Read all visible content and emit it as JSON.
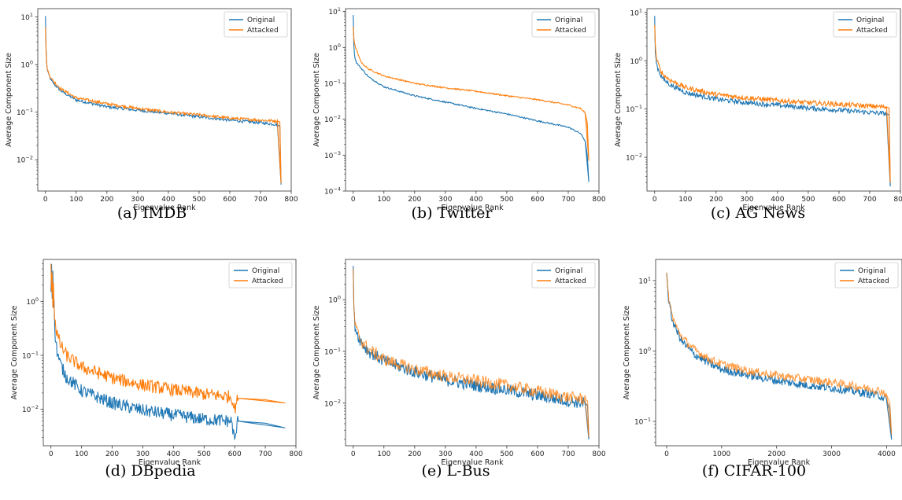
{
  "figure": {
    "colors": {
      "original": "#1f77b4",
      "attacked": "#ff7f0e"
    },
    "legend_position": "top-right"
  },
  "chart_data": [
    {
      "type": "line",
      "caption": "(a) IMDB",
      "xlabel": "Eigenvalue Rank",
      "ylabel": "Average Component Size",
      "xlim": [
        -25,
        800
      ],
      "ylim": [
        0.0022,
        15
      ],
      "yscale": "log",
      "xticks": [
        0,
        100,
        200,
        300,
        400,
        500,
        600,
        700,
        800
      ],
      "yticks": [
        {
          "v": 10,
          "t": "10"
        },
        {
          "v": 1,
          "t": "10"
        },
        {
          "v": 0.1,
          "t": "10"
        },
        {
          "v": 0.01,
          "t": "10"
        }
      ],
      "ytick_exps": [
        "1",
        "0",
        "-1",
        "-2"
      ],
      "noise": 0.03,
      "series": [
        {
          "name": "Original",
          "x": [
            0,
            1,
            3,
            6,
            10,
            20,
            30,
            50,
            100,
            200,
            300,
            400,
            500,
            600,
            700,
            755,
            763,
            767
          ],
          "values": [
            10.5,
            4,
            1.2,
            0.8,
            0.62,
            0.45,
            0.38,
            0.28,
            0.18,
            0.13,
            0.11,
            0.095,
            0.08,
            0.068,
            0.06,
            0.055,
            0.05,
            0.003
          ]
        },
        {
          "name": "Attacked",
          "x": [
            0,
            1,
            3,
            6,
            10,
            20,
            30,
            50,
            100,
            200,
            300,
            400,
            500,
            600,
            700,
            755,
            763,
            767
          ],
          "values": [
            6.2,
            3,
            1.1,
            0.82,
            0.66,
            0.5,
            0.42,
            0.31,
            0.2,
            0.15,
            0.12,
            0.1,
            0.088,
            0.075,
            0.068,
            0.065,
            0.062,
            0.0032
          ]
        }
      ]
    },
    {
      "type": "line",
      "caption": "(b) Twitter",
      "xlabel": "Eigenvalue Rank",
      "ylabel": "Average Component Size",
      "xlim": [
        -25,
        800
      ],
      "ylim": [
        0.0001,
        12
      ],
      "yscale": "log",
      "xticks": [
        0,
        100,
        200,
        300,
        400,
        500,
        600,
        700,
        800
      ],
      "yticks": [
        {
          "v": 10,
          "t": "10"
        },
        {
          "v": 1,
          "t": "10"
        },
        {
          "v": 0.1,
          "t": "10"
        },
        {
          "v": 0.01,
          "t": "10"
        },
        {
          "v": 0.001,
          "t": "10"
        },
        {
          "v": 0.0001,
          "t": "10"
        }
      ],
      "ytick_exps": [
        "1",
        "0",
        "-1",
        "-2",
        "-3",
        "-4"
      ],
      "noise": 0.02,
      "series": [
        {
          "name": "Original",
          "x": [
            0,
            1,
            3,
            6,
            10,
            20,
            30,
            50,
            100,
            200,
            300,
            400,
            500,
            600,
            700,
            740,
            755,
            762,
            767
          ],
          "values": [
            8,
            2,
            0.8,
            0.5,
            0.38,
            0.3,
            0.24,
            0.15,
            0.08,
            0.045,
            0.03,
            0.02,
            0.014,
            0.009,
            0.006,
            0.004,
            0.0025,
            0.001,
            0.00018
          ]
        },
        {
          "name": "Attacked",
          "x": [
            0,
            1,
            3,
            6,
            10,
            20,
            30,
            50,
            100,
            200,
            300,
            400,
            500,
            600,
            700,
            740,
            755,
            762,
            767
          ],
          "values": [
            3.8,
            2.5,
            1.4,
            1.1,
            0.9,
            0.5,
            0.35,
            0.25,
            0.16,
            0.1,
            0.075,
            0.06,
            0.045,
            0.035,
            0.025,
            0.02,
            0.015,
            0.008,
            0.0007
          ]
        }
      ]
    },
    {
      "type": "line",
      "caption": "(c) AG News",
      "xlabel": "Eigenvalue Rank",
      "ylabel": "Average Component Size",
      "xlim": [
        -25,
        800
      ],
      "ylim": [
        0.002,
        12
      ],
      "yscale": "log",
      "xticks": [
        0,
        100,
        200,
        300,
        400,
        500,
        600,
        700,
        800
      ],
      "yticks": [
        {
          "v": 10,
          "t": "10"
        },
        {
          "v": 1,
          "t": "10"
        },
        {
          "v": 0.1,
          "t": "10"
        },
        {
          "v": 0.01,
          "t": "10"
        }
      ],
      "ytick_exps": [
        "1",
        "0",
        "-1",
        "-2"
      ],
      "noise": 0.05,
      "series": [
        {
          "name": "Original",
          "x": [
            0,
            1,
            3,
            6,
            10,
            20,
            30,
            50,
            100,
            200,
            300,
            400,
            500,
            600,
            700,
            755,
            763,
            767
          ],
          "values": [
            8.5,
            2,
            1.2,
            0.9,
            0.7,
            0.5,
            0.4,
            0.32,
            0.22,
            0.16,
            0.135,
            0.12,
            0.105,
            0.095,
            0.085,
            0.08,
            0.075,
            0.0025
          ]
        },
        {
          "name": "Attacked",
          "x": [
            0,
            1,
            3,
            6,
            10,
            20,
            30,
            50,
            100,
            200,
            300,
            400,
            500,
            600,
            700,
            755,
            763,
            767
          ],
          "values": [
            5.5,
            3,
            1.6,
            1.1,
            0.9,
            0.62,
            0.5,
            0.4,
            0.28,
            0.2,
            0.17,
            0.15,
            0.135,
            0.125,
            0.115,
            0.11,
            0.105,
            0.003
          ]
        }
      ]
    },
    {
      "type": "line",
      "caption": "(d) DBpedia",
      "xlabel": "Eigenvalue Rank",
      "ylabel": "Average Component Size",
      "xlim": [
        -25,
        800
      ],
      "ylim": [
        0.0021,
        6
      ],
      "yscale": "log",
      "xticks": [
        0,
        100,
        200,
        300,
        400,
        500,
        600,
        700,
        800
      ],
      "yticks": [
        {
          "v": 1,
          "t": "10"
        },
        {
          "v": 0.1,
          "t": "10"
        },
        {
          "v": 0.01,
          "t": "10"
        }
      ],
      "ytick_exps": [
        "0",
        "-1",
        "-2"
      ],
      "noise": 0.12,
      "series": [
        {
          "name": "Original",
          "x": [
            0,
            2,
            4,
            6,
            8,
            10,
            12,
            15,
            20,
            30,
            50,
            100,
            200,
            300,
            400,
            500,
            590,
            600,
            610,
            700,
            765
          ],
          "values": [
            1.5,
            5,
            1.2,
            5,
            0.8,
            1.5,
            0.3,
            0.2,
            0.12,
            0.07,
            0.04,
            0.022,
            0.013,
            0.0095,
            0.0078,
            0.0065,
            0.006,
            0.0025,
            0.006,
            0.0055,
            0.0045
          ]
        },
        {
          "name": "Attacked",
          "x": [
            0,
            2,
            4,
            6,
            8,
            10,
            12,
            15,
            20,
            30,
            50,
            100,
            200,
            300,
            400,
            500,
            590,
            600,
            610,
            700,
            765
          ],
          "values": [
            5,
            1.5,
            4.5,
            0.8,
            2.5,
            1,
            0.6,
            0.35,
            0.25,
            0.16,
            0.1,
            0.06,
            0.038,
            0.028,
            0.023,
            0.019,
            0.017,
            0.01,
            0.016,
            0.015,
            0.013
          ]
        }
      ]
    },
    {
      "type": "line",
      "caption": "(e) L-Bus",
      "xlabel": "Eigenvalue Rank",
      "ylabel": "Average Component Size",
      "xlim": [
        -25,
        800
      ],
      "ylim": [
        0.0015,
        6
      ],
      "yscale": "log",
      "xticks": [
        0,
        100,
        200,
        300,
        400,
        500,
        600,
        700,
        800
      ],
      "yticks": [
        {
          "v": 1,
          "t": "10"
        },
        {
          "v": 0.1,
          "t": "10"
        },
        {
          "v": 0.01,
          "t": "10"
        }
      ],
      "ytick_exps": [
        "0",
        "-1",
        "-2"
      ],
      "noise": 0.12,
      "series": [
        {
          "name": "Original",
          "x": [
            0,
            1,
            3,
            6,
            10,
            20,
            30,
            50,
            100,
            200,
            300,
            400,
            500,
            600,
            700,
            755,
            763,
            767
          ],
          "values": [
            4.5,
            1.2,
            0.45,
            0.32,
            0.25,
            0.18,
            0.14,
            0.1,
            0.065,
            0.04,
            0.028,
            0.022,
            0.018,
            0.014,
            0.011,
            0.01,
            0.009,
            0.002
          ]
        },
        {
          "name": "Attacked",
          "x": [
            0,
            1,
            3,
            6,
            10,
            20,
            30,
            50,
            100,
            200,
            300,
            400,
            500,
            600,
            700,
            755,
            763,
            767
          ],
          "values": [
            4,
            1.3,
            0.5,
            0.34,
            0.26,
            0.19,
            0.15,
            0.11,
            0.07,
            0.045,
            0.033,
            0.027,
            0.022,
            0.017,
            0.013,
            0.012,
            0.011,
            0.0022
          ]
        }
      ]
    },
    {
      "type": "line",
      "caption": "(f) CIFAR-100",
      "xlabel": "Eigenvalue Rank",
      "ylabel": "Average Component Size",
      "xlim": [
        -200,
        4280
      ],
      "ylim": [
        0.045,
        20
      ],
      "yscale": "log",
      "xticks": [
        0,
        1000,
        2000,
        3000,
        4000
      ],
      "yticks": [
        {
          "v": 10,
          "t": "10"
        },
        {
          "v": 1,
          "t": "10"
        },
        {
          "v": 0.1,
          "t": "10"
        }
      ],
      "ytick_exps": [
        "1",
        "0",
        "-1"
      ],
      "noise": 0.06,
      "series": [
        {
          "name": "Original",
          "x": [
            0,
            10,
            30,
            60,
            100,
            200,
            300,
            500,
            800,
            1000,
            1500,
            2000,
            2500,
            3000,
            3500,
            3900,
            4000,
            4060,
            4090
          ],
          "values": [
            13,
            10,
            6,
            4,
            2.8,
            1.8,
            1.3,
            0.9,
            0.65,
            0.55,
            0.45,
            0.38,
            0.33,
            0.3,
            0.26,
            0.23,
            0.2,
            0.15,
            0.055
          ]
        },
        {
          "name": "Attacked",
          "x": [
            0,
            10,
            30,
            60,
            100,
            200,
            300,
            500,
            800,
            1000,
            1500,
            2000,
            2500,
            3000,
            3500,
            3900,
            4000,
            4060,
            4090
          ],
          "values": [
            13,
            10,
            6.5,
            4.5,
            3.2,
            2,
            1.5,
            1.05,
            0.75,
            0.65,
            0.52,
            0.45,
            0.4,
            0.36,
            0.31,
            0.27,
            0.24,
            0.18,
            0.065
          ]
        }
      ]
    }
  ]
}
